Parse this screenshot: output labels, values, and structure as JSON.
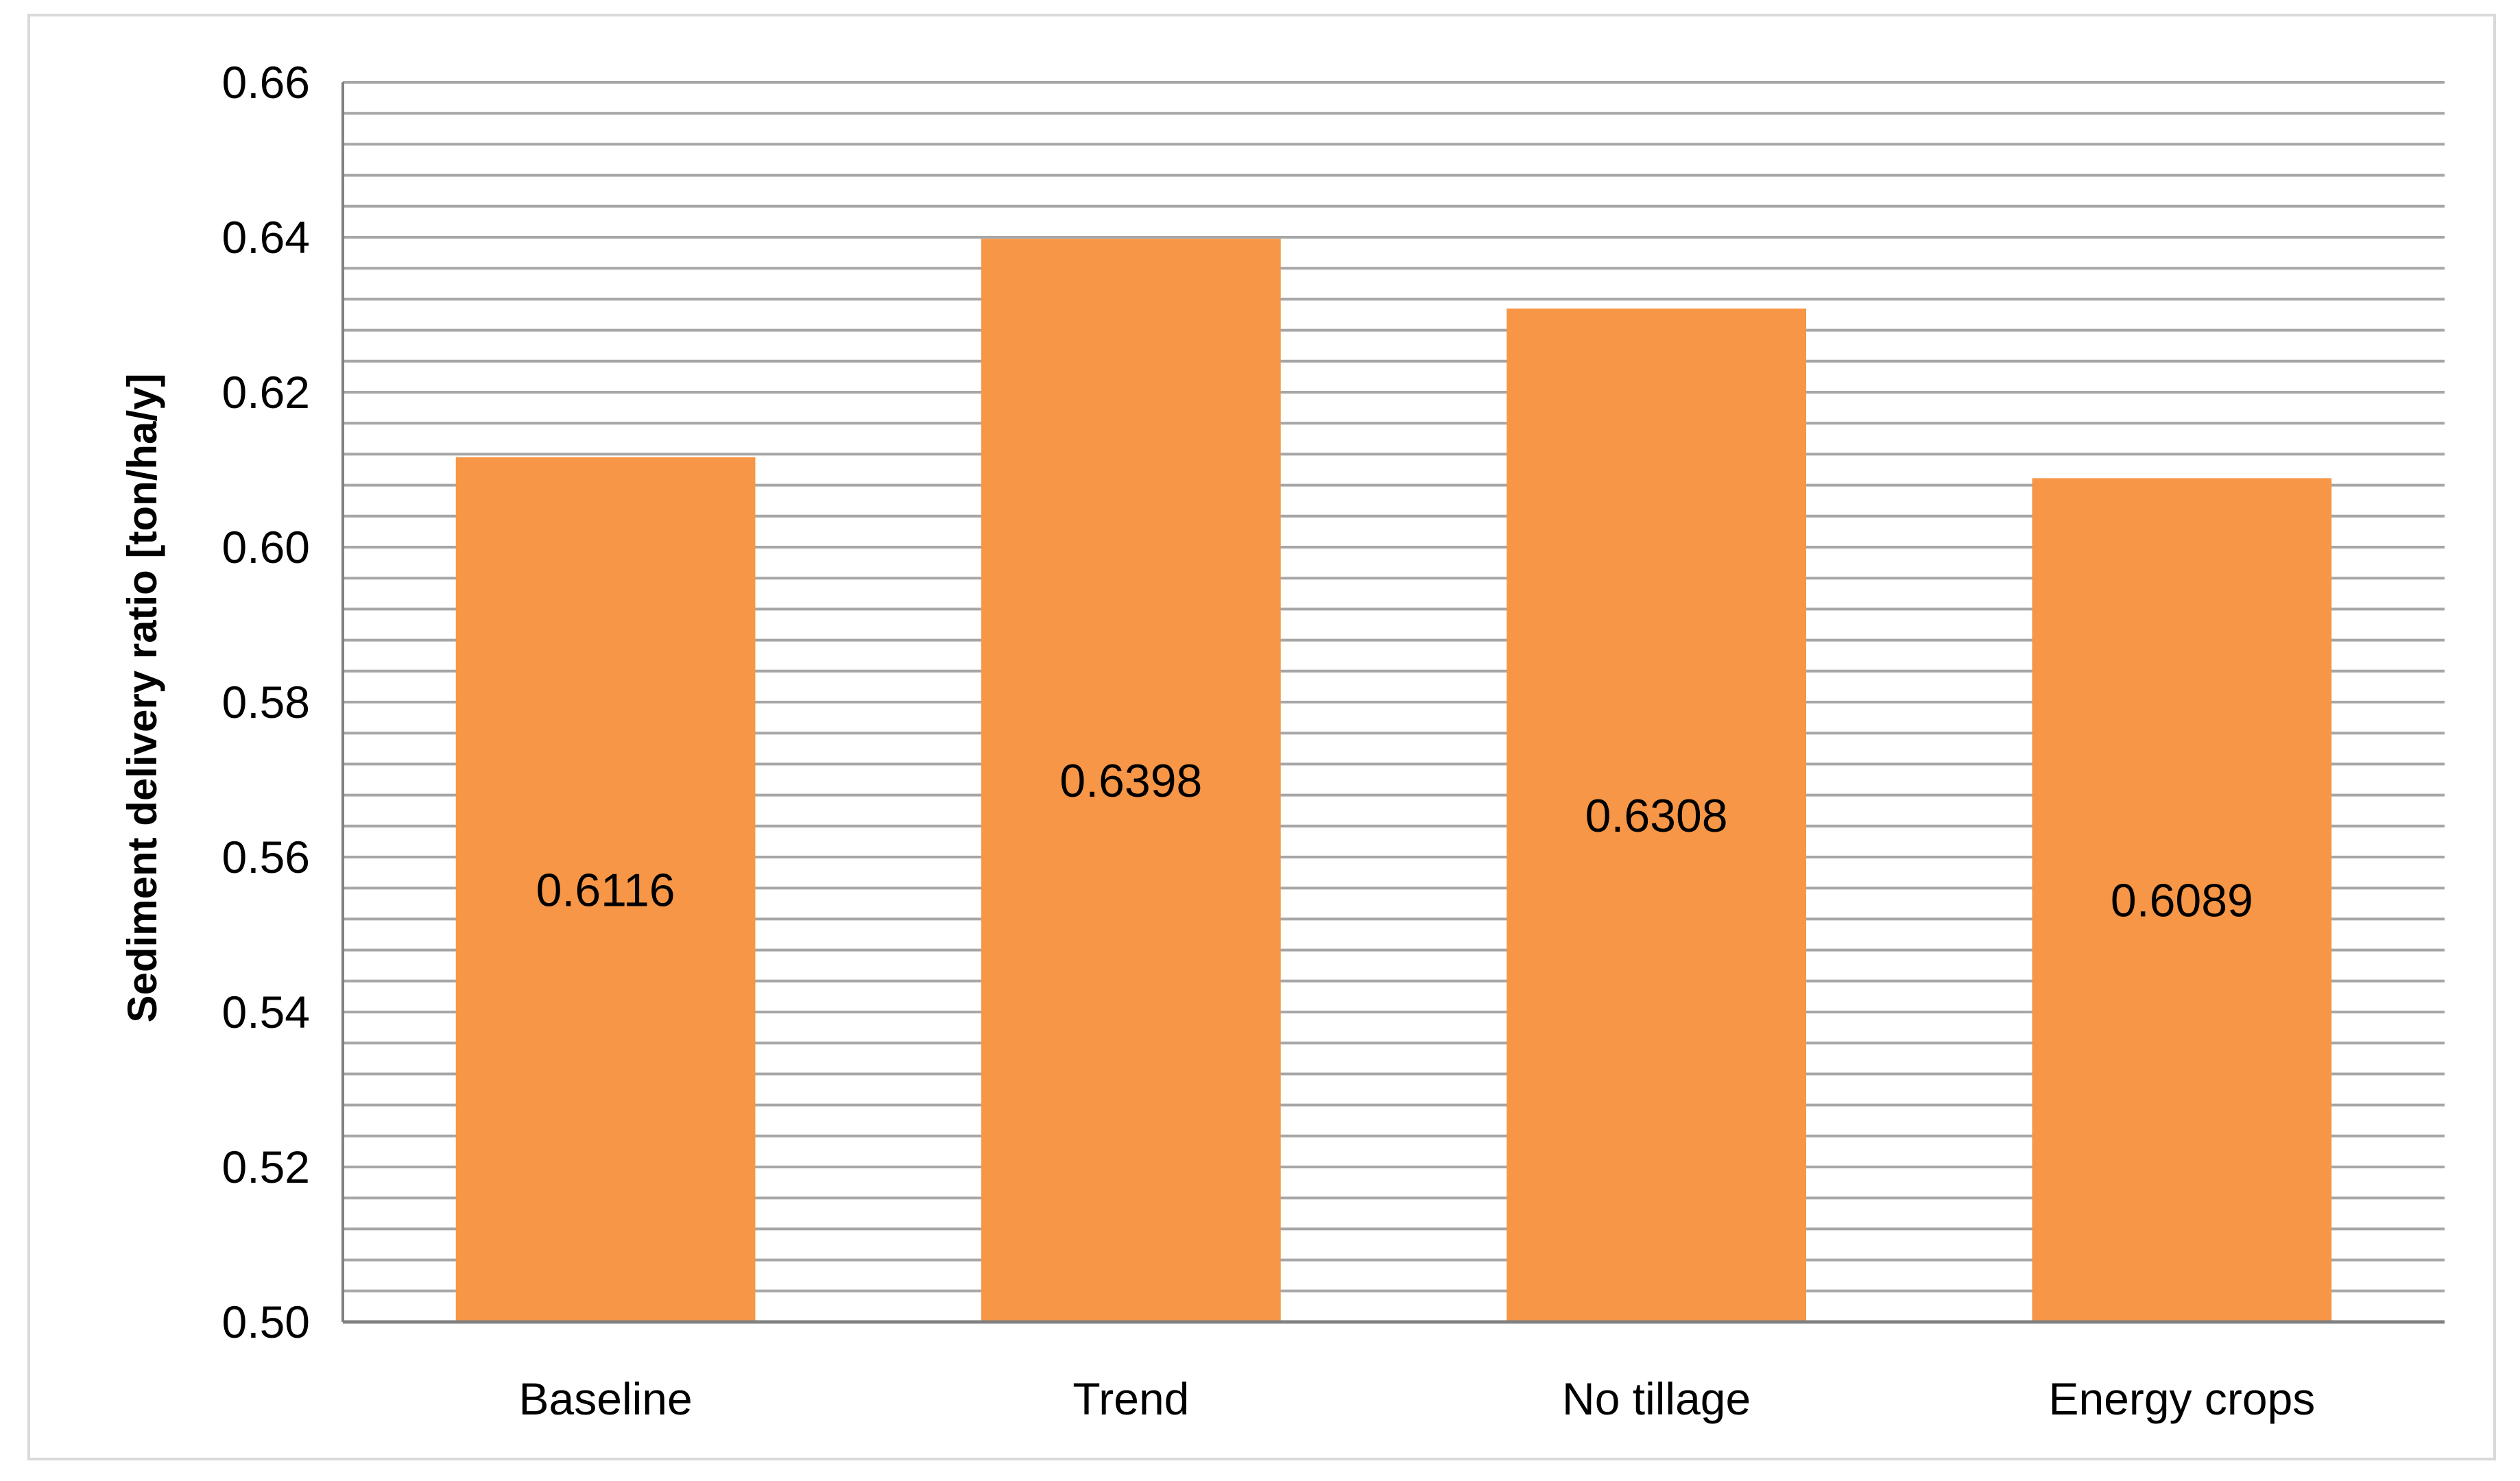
{
  "chart_data": {
    "type": "bar",
    "title": "",
    "xlabel": "",
    "ylabel": "Sediment delivery ratio [ton/ha/y]",
    "ylim": [
      0.5,
      0.66
    ],
    "yticks": [
      "0.50",
      "0.52",
      "0.54",
      "0.56",
      "0.58",
      "0.60",
      "0.62",
      "0.64",
      "0.66"
    ],
    "y_minor_step": 0.004,
    "grid": true,
    "legend": "none",
    "categories": [
      "Baseline",
      "Trend",
      "No tillage",
      "Energy crops"
    ],
    "values": [
      0.6116,
      0.6398,
      0.6308,
      0.6089
    ],
    "data_labels": [
      "0.6116",
      "0.6398",
      "0.6308",
      "0.6089"
    ],
    "colors": {
      "bar": "#f79646",
      "grid": "#a6a6a6",
      "axis": "#808080"
    }
  }
}
